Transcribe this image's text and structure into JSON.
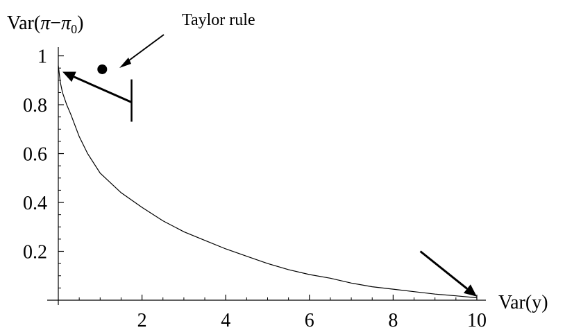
{
  "chart_data": {
    "type": "line",
    "title": "",
    "xlabel": "Var(y)",
    "ylabel_parts": {
      "prefix": "Var(",
      "pi": "π",
      "minus": "−",
      "pi0": "π",
      "sub": "0",
      "suffix": ")"
    },
    "xlim": [
      0,
      10.05
    ],
    "ylim": [
      0,
      1.03
    ],
    "x_ticks": [
      {
        "value": 2,
        "label": "2"
      },
      {
        "value": 4,
        "label": "4"
      },
      {
        "value": 6,
        "label": "6"
      },
      {
        "value": 8,
        "label": "8"
      },
      {
        "value": 10,
        "label": "10"
      }
    ],
    "y_ticks": [
      {
        "value": 0.2,
        "label": "0.2"
      },
      {
        "value": 0.4,
        "label": "0.4"
      },
      {
        "value": 0.6,
        "label": "0.6"
      },
      {
        "value": 0.8,
        "label": "0.8"
      },
      {
        "value": 1,
        "label": "1"
      }
    ],
    "grid": false,
    "series": [
      {
        "x": [
          0.0,
          0.05,
          0.1,
          0.2,
          0.3,
          0.5,
          0.7,
          1.0,
          1.5,
          2.0,
          2.5,
          3.0,
          3.5,
          4.0,
          4.5,
          5.0,
          5.5,
          6.0,
          6.5,
          7.0,
          7.5,
          8.0,
          8.5,
          9.0,
          9.5,
          10.0
        ],
        "y": [
          0.96,
          0.89,
          0.85,
          0.8,
          0.76,
          0.67,
          0.6,
          0.52,
          0.44,
          0.38,
          0.325,
          0.28,
          0.245,
          0.21,
          0.18,
          0.15,
          0.125,
          0.105,
          0.09,
          0.07,
          0.055,
          0.045,
          0.035,
          0.025,
          0.018,
          0.01
        ]
      }
    ],
    "annotations": [
      {
        "text": "Taylor rule",
        "x": 1.05,
        "y": 0.945,
        "marker": "dot"
      },
      {
        "type": "arrow",
        "from": [
          1.75,
          0.81
        ],
        "to": [
          0.1,
          0.935
        ],
        "bar_at_tail": true
      },
      {
        "type": "arrow",
        "from": [
          8.65,
          0.2
        ],
        "to": [
          10.0,
          0.015
        ]
      }
    ]
  }
}
